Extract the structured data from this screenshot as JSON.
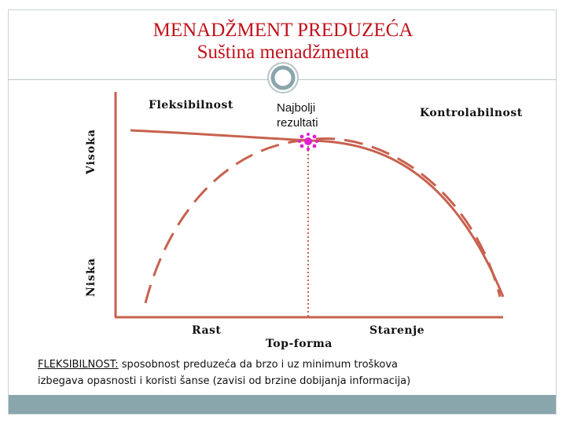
{
  "title": {
    "line1": "MENADŽMENT PREDUZEĆA",
    "line2": "Suština menadžmenta"
  },
  "axis": {
    "high_label": "Visoka",
    "low_label": "Niska"
  },
  "labels": {
    "flexibility": "Fleksibilnost",
    "best_results": [
      "Najbolji",
      "rezultati"
    ],
    "controllability": "Kontrolabilnost",
    "growth": "Rast",
    "top_form": "Top-forma",
    "aging": "Starenje"
  },
  "definition": {
    "term": "FLEKSIBILNOST:",
    "text_line1": " sposobnost preduzeća da brzo i uz minimum troškova",
    "text_line2": "izbegava opasnosti i koristi šanse (zavisi od brzine dobijanja informacija)"
  },
  "colors": {
    "title": "#c0131b",
    "curve": "#c8614e",
    "marker": "#e020d0",
    "footer": "#8aa6ad"
  }
}
